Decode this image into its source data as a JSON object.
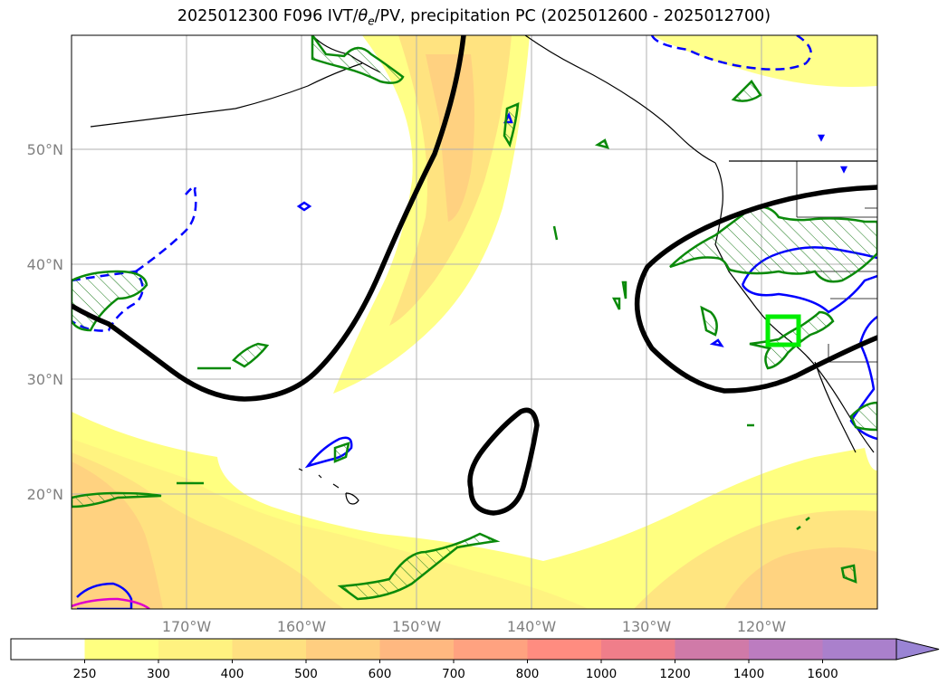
{
  "chart_data": {
    "type": "map",
    "title_parts": {
      "prefix": "2025012300 F096 IVT/",
      "theta": "θ",
      "sub": "e",
      "suffix": "/PV, precipitation PC (2025012600 - 2025012700)"
    },
    "projection": "plate carree",
    "lon_range": [
      -180,
      -110
    ],
    "lat_range": [
      10,
      60
    ],
    "grid": true,
    "lat_ticks": [
      {
        "value": 50,
        "label": "50°N"
      },
      {
        "value": 40,
        "label": "40°N"
      },
      {
        "value": 30,
        "label": "30°N"
      },
      {
        "value": 20,
        "label": "20°N"
      }
    ],
    "lon_ticks": [
      {
        "value": -170,
        "label": "170°W"
      },
      {
        "value": -160,
        "label": "160°W"
      },
      {
        "value": -150,
        "label": "150°W"
      },
      {
        "value": -140,
        "label": "140°W"
      },
      {
        "value": -130,
        "label": "130°W"
      },
      {
        "value": -120,
        "label": "120°W"
      }
    ],
    "colorbar": {
      "extend": "max",
      "ticks": [
        "250",
        "300",
        "400",
        "500",
        "600",
        "700",
        "800",
        "1000",
        "1200",
        "1400",
        "1600"
      ],
      "colors": [
        "#ffff80",
        "#fff280",
        "#ffe080",
        "#ffce80",
        "#ffb880",
        "#ffa280",
        "#ff8c80",
        "#f07e8a",
        "#d07aa8",
        "#bc7cc0",
        "#aa80cc",
        "#9a84d4"
      ]
    },
    "highlight_box": {
      "lon": [
        -119,
        -116.5
      ],
      "lat": [
        33,
        35.5
      ],
      "color": "#00ee00"
    }
  }
}
